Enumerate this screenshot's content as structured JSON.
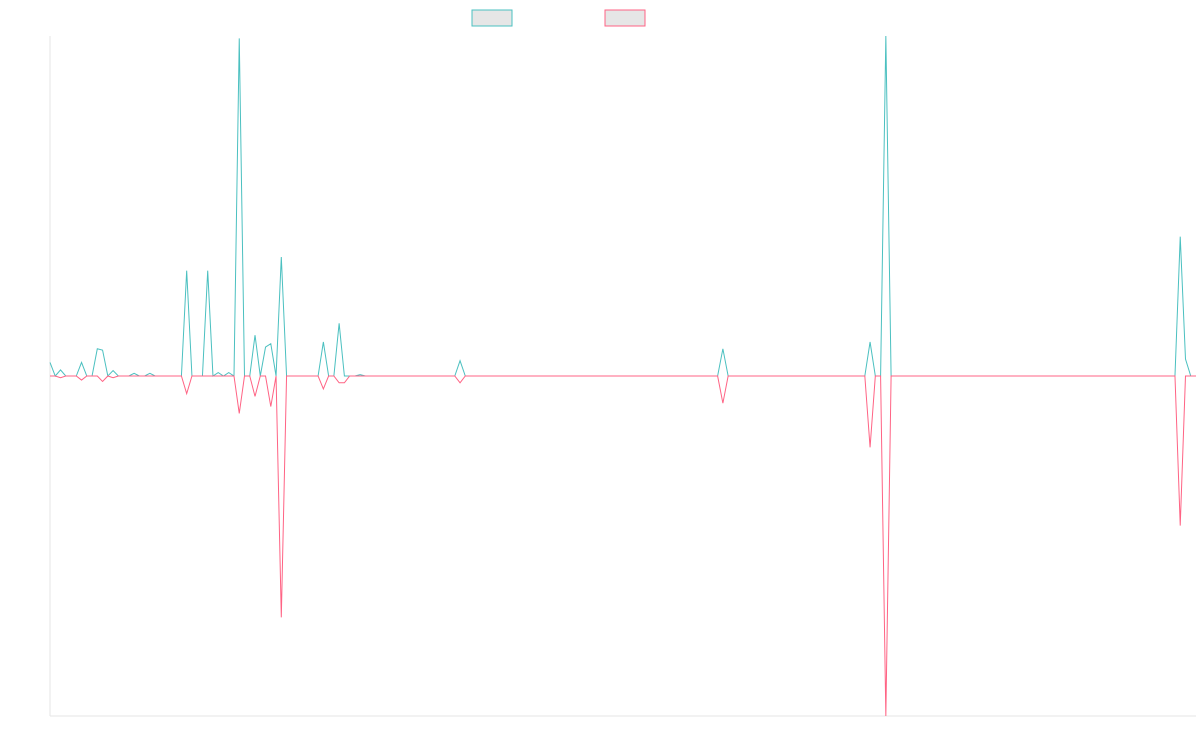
{
  "chart_data": {
    "type": "line",
    "title": "",
    "xlabel": "",
    "ylabel": "",
    "ylim": [
      -1,
      1
    ],
    "grid": false,
    "legend_position": "top-center",
    "x_count": 219,
    "series": [
      {
        "color": "#4bc0c0",
        "legend_fill": "#e6e6e6",
        "points": [
          [
            0,
            0.04
          ],
          [
            2,
            0.018
          ],
          [
            6,
            0.04
          ],
          [
            9,
            0.08
          ],
          [
            10,
            0.076
          ],
          [
            12,
            0.016
          ],
          [
            16,
            0.008
          ],
          [
            19,
            0.008
          ],
          [
            26,
            0.31
          ],
          [
            30,
            0.31
          ],
          [
            32,
            0.01
          ],
          [
            34,
            0.01
          ],
          [
            36,
            0.993
          ],
          [
            39,
            0.12
          ],
          [
            41,
            0.085
          ],
          [
            42,
            0.095
          ],
          [
            44,
            0.35
          ],
          [
            52,
            0.1
          ],
          [
            55,
            0.155
          ],
          [
            59,
            0.004
          ],
          [
            78,
            0.045
          ],
          [
            128,
            0.08
          ],
          [
            156,
            0.1
          ],
          [
            159,
            1.0
          ],
          [
            215,
            0.41
          ],
          [
            216,
            0.05
          ]
        ]
      },
      {
        "color": "#ff6384",
        "legend_fill": "#e6e6e6",
        "points": [
          [
            2,
            -0.005
          ],
          [
            6,
            -0.012
          ],
          [
            10,
            -0.016
          ],
          [
            12,
            -0.005
          ],
          [
            26,
            -0.052
          ],
          [
            36,
            -0.11
          ],
          [
            39,
            -0.06
          ],
          [
            42,
            -0.09
          ],
          [
            44,
            -0.71
          ],
          [
            52,
            -0.038
          ],
          [
            55,
            -0.02
          ],
          [
            56,
            -0.02
          ],
          [
            78,
            -0.02
          ],
          [
            128,
            -0.08
          ],
          [
            156,
            -0.21
          ],
          [
            159,
            -1.0
          ],
          [
            215,
            -0.44
          ]
        ]
      }
    ]
  }
}
